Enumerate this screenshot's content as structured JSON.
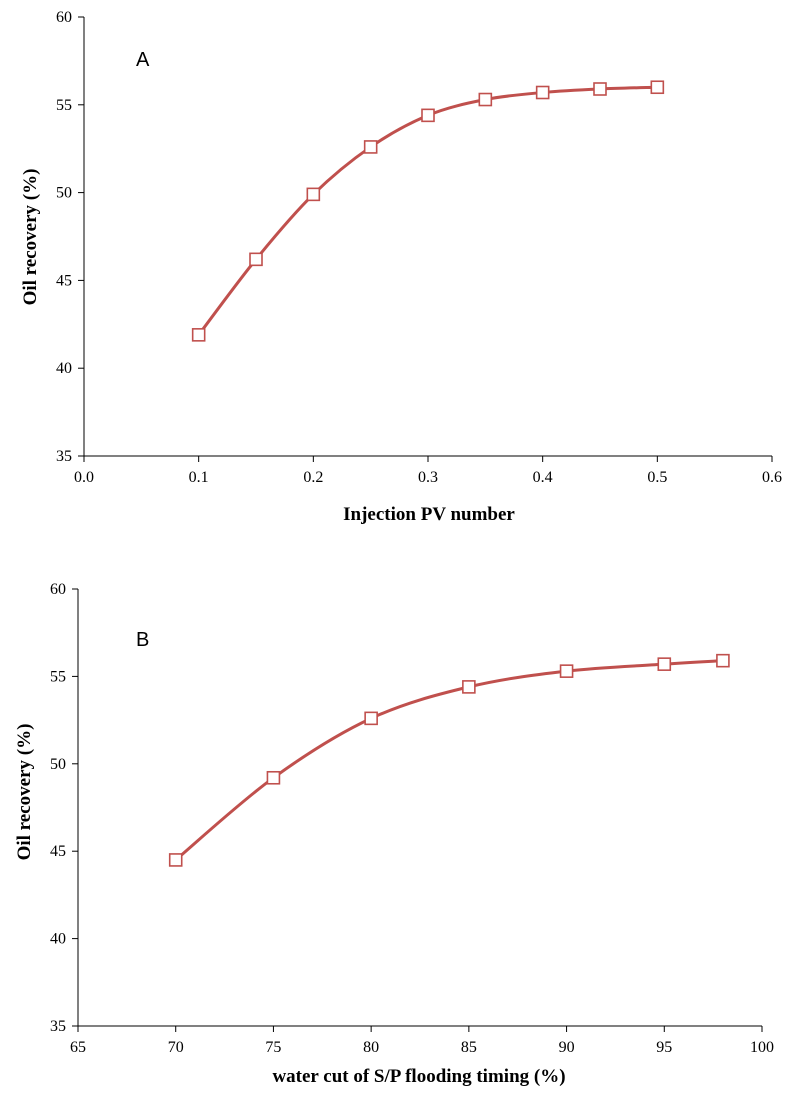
{
  "chart_data": [
    {
      "type": "line",
      "panel_label": "A",
      "title": "",
      "xlabel": "Injection PV number",
      "ylabel": "Oil recovery (%)",
      "xlim": [
        0.0,
        0.6
      ],
      "ylim": [
        35,
        60
      ],
      "x_ticks": [
        "0.0",
        "0.1",
        "0.2",
        "0.3",
        "0.4",
        "0.5",
        "0.6"
      ],
      "y_ticks": [
        "35",
        "40",
        "45",
        "50",
        "55",
        "60"
      ],
      "grid": false,
      "legend": "none",
      "marker": "open-square",
      "color": "#c0504d",
      "series": [
        {
          "x": [
            0.1,
            0.15,
            0.2,
            0.25,
            0.3,
            0.35,
            0.4,
            0.45,
            0.5
          ],
          "y": [
            41.9,
            46.2,
            49.9,
            52.6,
            54.4,
            55.3,
            55.7,
            55.9,
            56.0
          ]
        }
      ]
    },
    {
      "type": "line",
      "panel_label": "B",
      "title": "",
      "xlabel": "water cut of S/P flooding timing (%)",
      "ylabel": "Oil recovery (%)",
      "xlim": [
        65,
        100
      ],
      "ylim": [
        35,
        60
      ],
      "x_ticks": [
        "65",
        "70",
        "75",
        "80",
        "85",
        "90",
        "95",
        "100"
      ],
      "y_ticks": [
        "35",
        "40",
        "45",
        "50",
        "55",
        "60"
      ],
      "grid": false,
      "legend": "none",
      "marker": "open-square",
      "color": "#c0504d",
      "series": [
        {
          "x": [
            70,
            75,
            80,
            85,
            90,
            95,
            98
          ],
          "y": [
            44.5,
            49.2,
            52.6,
            54.4,
            55.3,
            55.7,
            55.9
          ]
        }
      ]
    }
  ]
}
